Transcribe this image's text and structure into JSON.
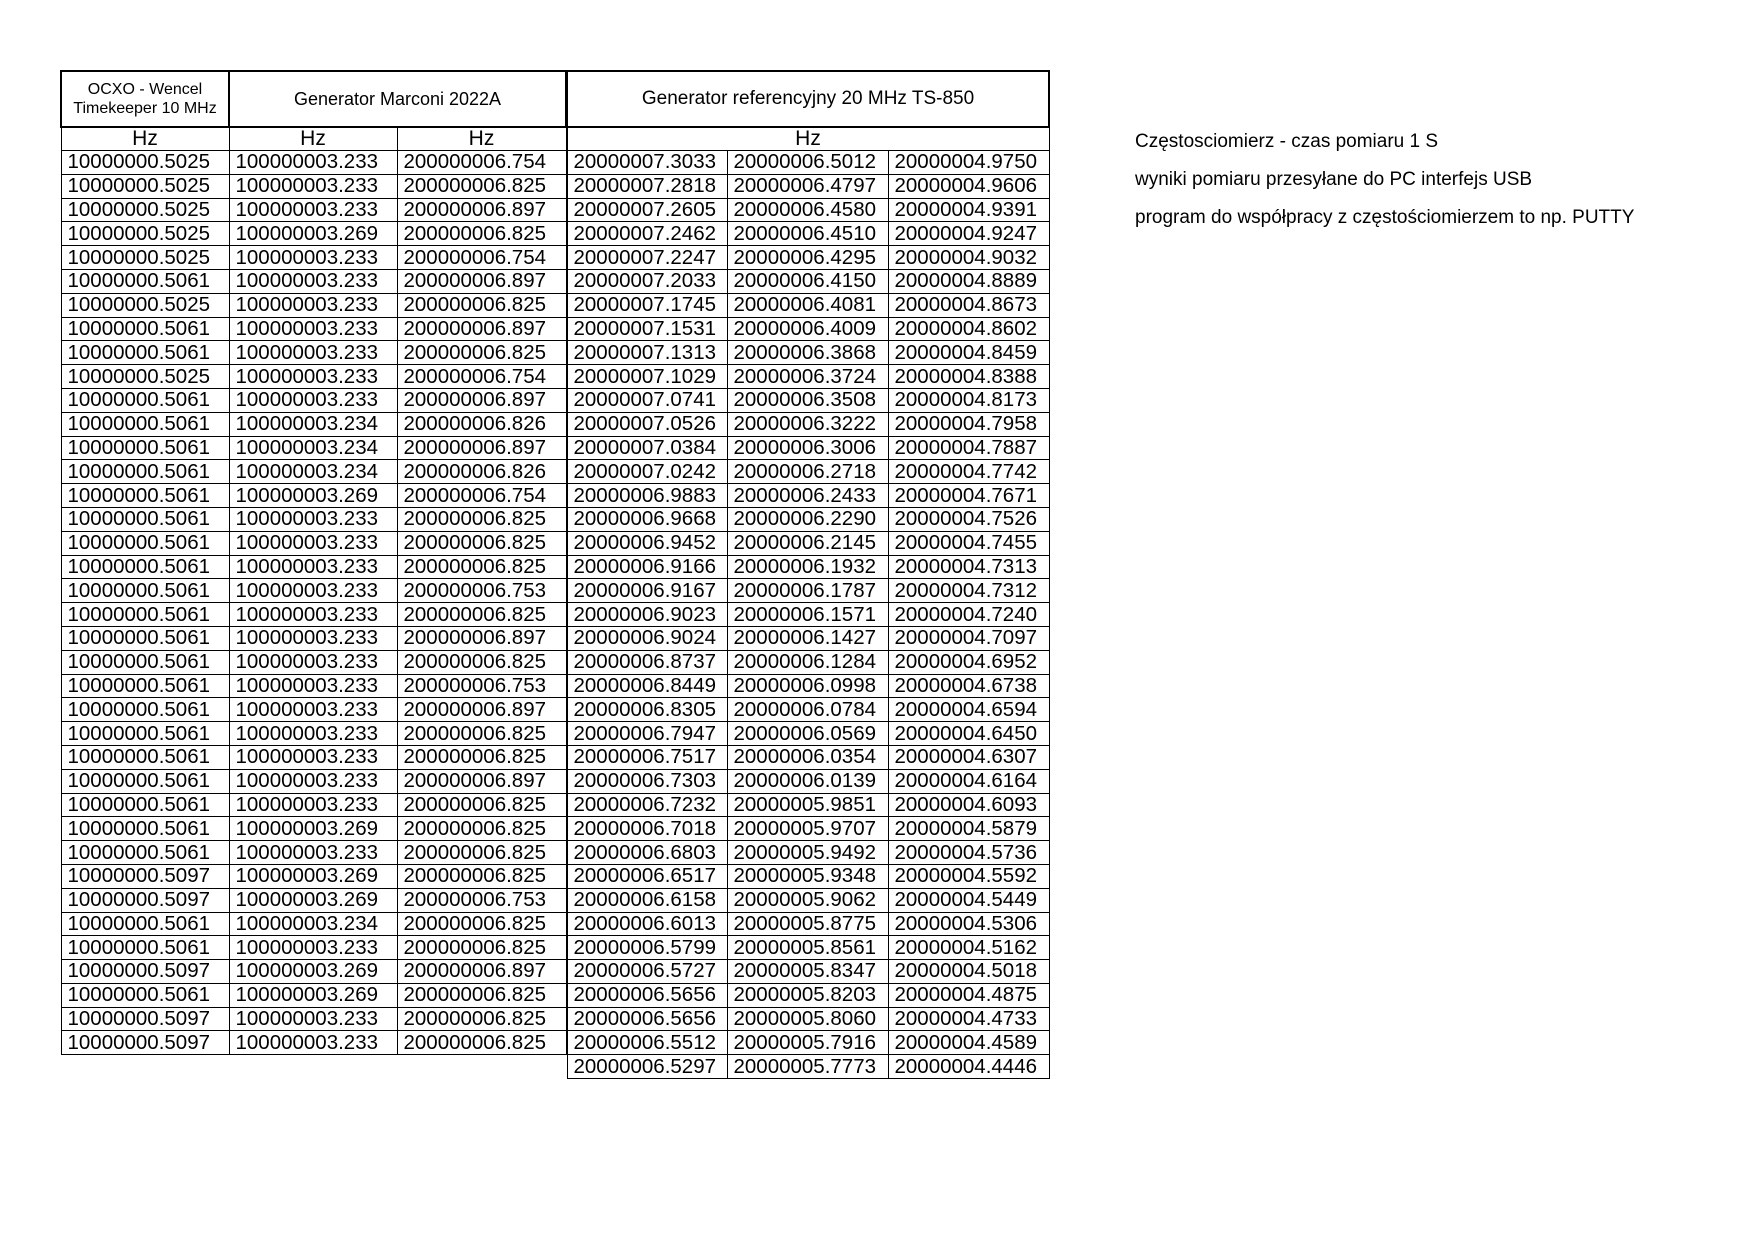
{
  "left_table": {
    "headers": [
      "OCXO  - Wencel\nTimekeeper 10 MHz",
      "Generator Marconi 2022A"
    ],
    "header_line1": "OCXO  - Wencel",
    "header_line2": "Timekeeper 10 MHz",
    "marconi": "Generator Marconi 2022A",
    "units": [
      "Hz",
      "Hz",
      "Hz"
    ],
    "rows": [
      [
        "10000000.5025",
        "100000003.233",
        "200000006.754"
      ],
      [
        "10000000.5025",
        "100000003.233",
        "200000006.825"
      ],
      [
        "10000000.5025",
        "100000003.233",
        "200000006.897"
      ],
      [
        "10000000.5025",
        "100000003.269",
        "200000006.825"
      ],
      [
        "10000000.5025",
        "100000003.233",
        "200000006.754"
      ],
      [
        "10000000.5061",
        "100000003.233",
        "200000006.897"
      ],
      [
        "10000000.5025",
        "100000003.233",
        "200000006.825"
      ],
      [
        "10000000.5061",
        "100000003.233",
        "200000006.897"
      ],
      [
        "10000000.5061",
        "100000003.233",
        "200000006.825"
      ],
      [
        "10000000.5025",
        "100000003.233",
        "200000006.754"
      ],
      [
        "10000000.5061",
        "100000003.233",
        "200000006.897"
      ],
      [
        "10000000.5061",
        "100000003.234",
        "200000006.826"
      ],
      [
        "10000000.5061",
        "100000003.234",
        "200000006.897"
      ],
      [
        "10000000.5061",
        "100000003.234",
        "200000006.826"
      ],
      [
        "10000000.5061",
        "100000003.269",
        "200000006.754"
      ],
      [
        "10000000.5061",
        "100000003.233",
        "200000006.825"
      ],
      [
        "10000000.5061",
        "100000003.233",
        "200000006.825"
      ],
      [
        "10000000.5061",
        "100000003.233",
        "200000006.825"
      ],
      [
        "10000000.5061",
        "100000003.233",
        "200000006.753"
      ],
      [
        "10000000.5061",
        "100000003.233",
        "200000006.825"
      ],
      [
        "10000000.5061",
        "100000003.233",
        "200000006.897"
      ],
      [
        "10000000.5061",
        "100000003.233",
        "200000006.825"
      ],
      [
        "10000000.5061",
        "100000003.233",
        "200000006.753"
      ],
      [
        "10000000.5061",
        "100000003.233",
        "200000006.897"
      ],
      [
        "10000000.5061",
        "100000003.233",
        "200000006.825"
      ],
      [
        "10000000.5061",
        "100000003.233",
        "200000006.825"
      ],
      [
        "10000000.5061",
        "100000003.233",
        "200000006.897"
      ],
      [
        "10000000.5061",
        "100000003.233",
        "200000006.825"
      ],
      [
        "10000000.5061",
        "100000003.269",
        "200000006.825"
      ],
      [
        "10000000.5061",
        "100000003.233",
        "200000006.825"
      ],
      [
        "10000000.5097",
        "100000003.269",
        "200000006.825"
      ],
      [
        "10000000.5097",
        "100000003.269",
        "200000006.753"
      ],
      [
        "10000000.5061",
        "100000003.234",
        "200000006.825"
      ],
      [
        "10000000.5061",
        "100000003.233",
        "200000006.825"
      ],
      [
        "10000000.5097",
        "100000003.269",
        "200000006.897"
      ],
      [
        "10000000.5061",
        "100000003.269",
        "200000006.825"
      ],
      [
        "10000000.5097",
        "100000003.233",
        "200000006.825"
      ],
      [
        "10000000.5097",
        "100000003.233",
        "200000006.825"
      ]
    ]
  },
  "right_table": {
    "title": "Generator referencyjny   20 MHz TS-850",
    "unit": "Hz",
    "rows": [
      [
        "20000007.3033",
        "20000006.5012",
        "20000004.9750"
      ],
      [
        "20000007.2818",
        "20000006.4797",
        "20000004.9606"
      ],
      [
        "20000007.2605",
        "20000006.4580",
        "20000004.9391"
      ],
      [
        "20000007.2462",
        "20000006.4510",
        "20000004.9247"
      ],
      [
        "20000007.2247",
        "20000006.4295",
        "20000004.9032"
      ],
      [
        "20000007.2033",
        "20000006.4150",
        "20000004.8889"
      ],
      [
        "20000007.1745",
        "20000006.4081",
        "20000004.8673"
      ],
      [
        "20000007.1531",
        "20000006.4009",
        "20000004.8602"
      ],
      [
        "20000007.1313",
        "20000006.3868",
        "20000004.8459"
      ],
      [
        "20000007.1029",
        "20000006.3724",
        "20000004.8388"
      ],
      [
        "20000007.0741",
        "20000006.3508",
        "20000004.8173"
      ],
      [
        "20000007.0526",
        "20000006.3222",
        "20000004.7958"
      ],
      [
        "20000007.0384",
        "20000006.3006",
        "20000004.7887"
      ],
      [
        "20000007.0242",
        "20000006.2718",
        "20000004.7742"
      ],
      [
        "20000006.9883",
        "20000006.2433",
        "20000004.7671"
      ],
      [
        "20000006.9668",
        "20000006.2290",
        "20000004.7526"
      ],
      [
        "20000006.9452",
        "20000006.2145",
        "20000004.7455"
      ],
      [
        "20000006.9166",
        "20000006.1932",
        "20000004.7313"
      ],
      [
        "20000006.9167",
        "20000006.1787",
        "20000004.7312"
      ],
      [
        "20000006.9023",
        "20000006.1571",
        "20000004.7240"
      ],
      [
        "20000006.9024",
        "20000006.1427",
        "20000004.7097"
      ],
      [
        "20000006.8737",
        "20000006.1284",
        "20000004.6952"
      ],
      [
        "20000006.8449",
        "20000006.0998",
        "20000004.6738"
      ],
      [
        "20000006.8305",
        "20000006.0784",
        "20000004.6594"
      ],
      [
        "20000006.7947",
        "20000006.0569",
        "20000004.6450"
      ],
      [
        "20000006.7517",
        "20000006.0354",
        "20000004.6307"
      ],
      [
        "20000006.7303",
        "20000006.0139",
        "20000004.6164"
      ],
      [
        "20000006.7232",
        "20000005.9851",
        "20000004.6093"
      ],
      [
        "20000006.7018",
        "20000005.9707",
        "20000004.5879"
      ],
      [
        "20000006.6803",
        "20000005.9492",
        "20000004.5736"
      ],
      [
        "20000006.6517",
        "20000005.9348",
        "20000004.5592"
      ],
      [
        "20000006.6158",
        "20000005.9062",
        "20000004.5449"
      ],
      [
        "20000006.6013",
        "20000005.8775",
        "20000004.5306"
      ],
      [
        "20000006.5799",
        "20000005.8561",
        "20000004.5162"
      ],
      [
        "20000006.5727",
        "20000005.8347",
        "20000004.5018"
      ],
      [
        "20000006.5656",
        "20000005.8203",
        "20000004.4875"
      ],
      [
        "20000006.5656",
        "20000005.8060",
        "20000004.4733"
      ],
      [
        "20000006.5512",
        "20000005.7916",
        "20000004.4589"
      ],
      [
        "20000006.5297",
        "20000005.7773",
        "20000004.4446"
      ]
    ]
  },
  "notes": [
    "Częstosciomierz  -  czas pomiaru   1 S",
    "wyniki pomiaru przesyłane  do PC  interfejs USB",
    "program do  współpracy z częstościomierzem  to np. PUTTY"
  ]
}
